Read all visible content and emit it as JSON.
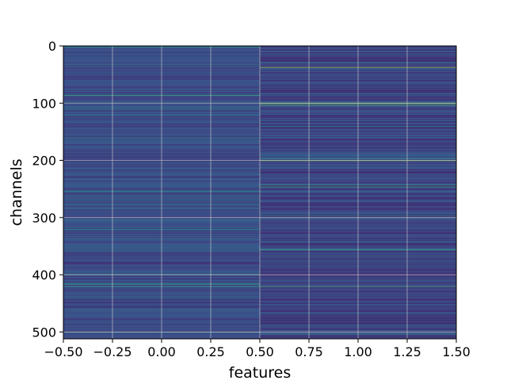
{
  "chart_data": {
    "type": "heatmap",
    "title": "",
    "xlabel": "features",
    "ylabel": "channels",
    "xlim": [
      -0.5,
      1.5
    ],
    "ylim": [
      512,
      0
    ],
    "y_inverted": true,
    "grid": true,
    "colormap": "viridis",
    "columns": 2,
    "rows": 512,
    "x_ticks": [
      {
        "value": -0.5,
        "label": "−0.50"
      },
      {
        "value": -0.25,
        "label": "−0.25"
      },
      {
        "value": 0.0,
        "label": "0.00"
      },
      {
        "value": 0.25,
        "label": "0.25"
      },
      {
        "value": 0.5,
        "label": "0.50"
      },
      {
        "value": 0.75,
        "label": "0.75"
      },
      {
        "value": 1.0,
        "label": "1.00"
      },
      {
        "value": 1.25,
        "label": "1.25"
      },
      {
        "value": 1.5,
        "label": "1.50"
      }
    ],
    "y_ticks": [
      {
        "value": 0,
        "label": "0"
      },
      {
        "value": 100,
        "label": "100"
      },
      {
        "value": 200,
        "label": "200"
      },
      {
        "value": 300,
        "label": "300"
      },
      {
        "value": 400,
        "label": "400"
      },
      {
        "value": 500,
        "label": "500"
      }
    ],
    "highlight_rows": [
      {
        "column": 0,
        "row": 2,
        "value": 0.55
      },
      {
        "column": 0,
        "row": 86,
        "value": 0.6
      },
      {
        "column": 0,
        "row": 108,
        "value": 0.45
      },
      {
        "column": 0,
        "row": 120,
        "value": 0.45
      },
      {
        "column": 0,
        "row": 160,
        "value": 0.4
      },
      {
        "column": 0,
        "row": 262,
        "value": 0.45
      },
      {
        "column": 0,
        "row": 276,
        "value": 0.45
      },
      {
        "column": 0,
        "row": 320,
        "value": 0.5
      },
      {
        "column": 0,
        "row": 398,
        "value": 0.45
      },
      {
        "column": 0,
        "row": 416,
        "value": 0.6
      },
      {
        "column": 0,
        "row": 420,
        "value": 0.55
      },
      {
        "column": 0,
        "row": 500,
        "value": 0.45
      },
      {
        "column": 1,
        "row": 28,
        "value": 0.45
      },
      {
        "column": 1,
        "row": 37,
        "value": 0.85
      },
      {
        "column": 1,
        "row": 100,
        "value": 0.8
      },
      {
        "column": 1,
        "row": 103,
        "value": 0.75
      },
      {
        "column": 1,
        "row": 140,
        "value": 0.5
      },
      {
        "column": 1,
        "row": 196,
        "value": 0.55
      },
      {
        "column": 1,
        "row": 200,
        "value": 0.8
      },
      {
        "column": 1,
        "row": 242,
        "value": 0.55
      },
      {
        "column": 1,
        "row": 246,
        "value": 0.6
      },
      {
        "column": 1,
        "row": 296,
        "value": 0.4
      },
      {
        "column": 1,
        "row": 356,
        "value": 0.6
      },
      {
        "column": 1,
        "row": 420,
        "value": 0.65
      },
      {
        "column": 1,
        "row": 488,
        "value": 0.45
      },
      {
        "column": 1,
        "row": 503,
        "value": 0.45
      }
    ]
  }
}
